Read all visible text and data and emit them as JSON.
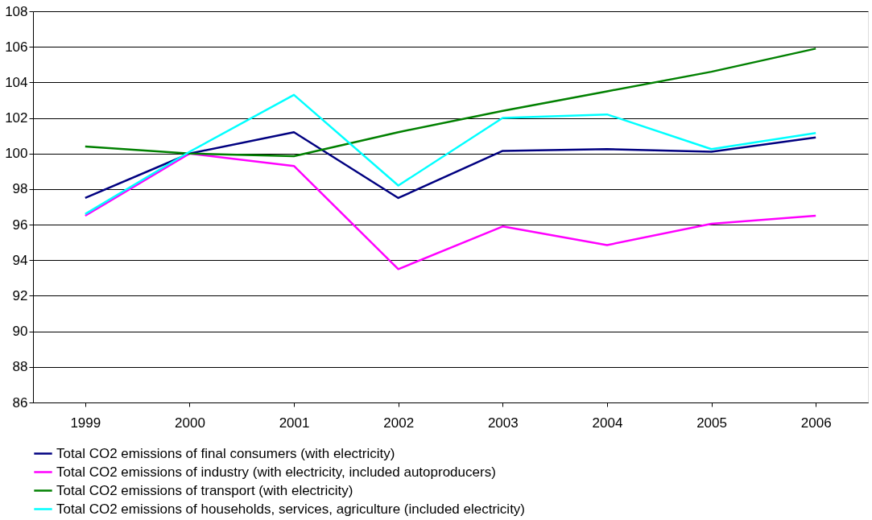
{
  "chart_data": {
    "type": "line",
    "categories": [
      "1999",
      "2000",
      "2001",
      "2002",
      "2003",
      "2004",
      "2005",
      "2006"
    ],
    "ylim": [
      86,
      108
    ],
    "yticks": [
      86,
      88,
      90,
      92,
      94,
      96,
      98,
      100,
      102,
      104,
      106,
      108
    ],
    "grid": "y",
    "legend": "bottom",
    "marker": "none",
    "line_style": "solid",
    "series": [
      {
        "name": "Total CO2 emissions of final consumers (with electricity)",
        "color": "#000080",
        "values": [
          97.5,
          100.0,
          101.2,
          97.5,
          100.15,
          100.25,
          100.1,
          100.9
        ]
      },
      {
        "name": "Total CO2 emissions of industry (with electricity, included autoproducers)",
        "color": "#ff00ff",
        "values": [
          96.5,
          100.0,
          99.3,
          93.5,
          95.9,
          94.85,
          96.05,
          96.5
        ]
      },
      {
        "name": "Total CO2 emissions of transport (with electricity)",
        "color": "#008000",
        "values": [
          100.4,
          100.0,
          99.85,
          101.2,
          102.4,
          103.5,
          104.6,
          105.9
        ]
      },
      {
        "name": "Total CO2 emissions of households, services, agriculture (included electricity)",
        "color": "#00ffff",
        "values": [
          96.6,
          100.1,
          103.3,
          98.2,
          102.0,
          102.2,
          100.25,
          101.15
        ]
      }
    ]
  }
}
